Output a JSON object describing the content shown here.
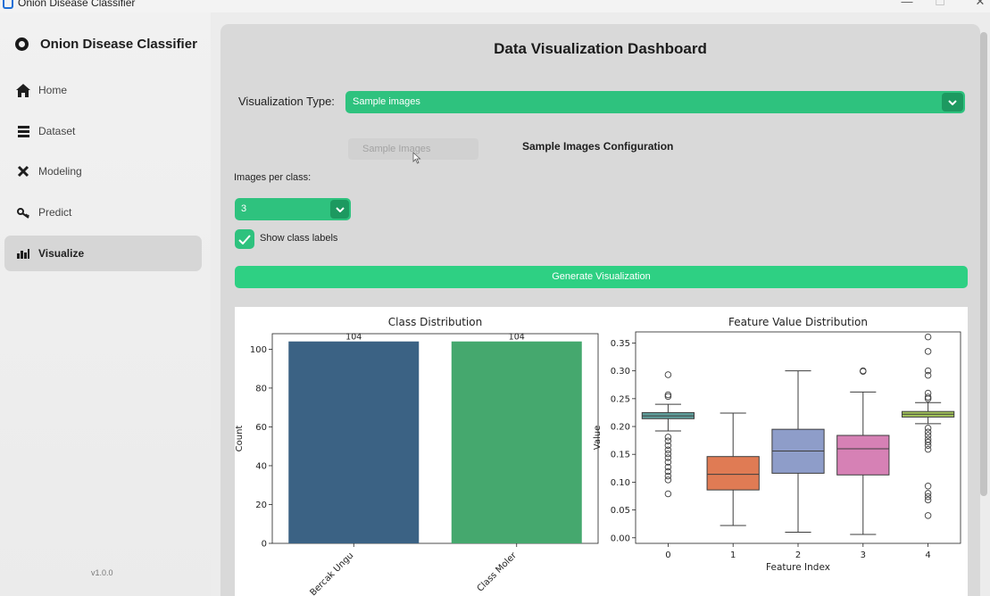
{
  "window": {
    "title": "Onion Disease Classifier",
    "controls": [
      "—",
      "☐",
      "✕"
    ]
  },
  "sidebar": {
    "brand": "Onion Disease Classifier",
    "items": [
      {
        "label": "Home",
        "icon": "home-icon"
      },
      {
        "label": "Dataset",
        "icon": "dataset-icon"
      },
      {
        "label": "Modeling",
        "icon": "modeling-icon"
      },
      {
        "label": "Predict",
        "icon": "key-icon"
      },
      {
        "label": "Visualize",
        "icon": "bar-chart-icon",
        "active": true
      }
    ],
    "version": "v1.0.0"
  },
  "main": {
    "title": "Data Visualization Dashboard",
    "viz_type_label": "Visualization Type:",
    "viz_type_value": "Sample images",
    "segment_button": "Sample Images",
    "config_title": "Sample Images Configuration",
    "images_per_class_label": "Images per class:",
    "images_per_class_value": "3",
    "show_labels_label": "Show class labels",
    "show_labels_checked": true,
    "generate_button": "Generate Visualization"
  },
  "colors": {
    "accent": "#2ec27e",
    "accent_dark": "#1d9960",
    "bar1": "#3b6284",
    "bar2": "#45a86e"
  },
  "chart_data": [
    {
      "type": "bar",
      "title": "Class Distribution",
      "xlabel": "",
      "ylabel": "Count",
      "categories": [
        "Bercak Ungu",
        "Class Moler"
      ],
      "values": [
        104,
        104
      ],
      "data_labels": [
        "104",
        "104"
      ],
      "ylim": [
        0,
        108
      ],
      "yticks": [
        0,
        20,
        40,
        60,
        80,
        100
      ],
      "colors": [
        "#3b6284",
        "#45a86e"
      ]
    },
    {
      "type": "box",
      "title": "Feature Value Distribution",
      "xlabel": "Feature Index",
      "ylabel": "Value",
      "categories": [
        "0",
        "1",
        "2",
        "3",
        "4"
      ],
      "ylim": [
        -0.01,
        0.37
      ],
      "yticks": [
        0.0,
        0.05,
        0.1,
        0.15,
        0.2,
        0.25,
        0.3,
        0.35
      ],
      "ytick_labels": [
        "0.00",
        "0.05",
        "0.10",
        "0.15",
        "0.20",
        "0.25",
        "0.30",
        "0.35"
      ],
      "boxes": [
        {
          "q1": 0.214,
          "median": 0.219,
          "q3": 0.225,
          "whislo": 0.192,
          "whishi": 0.24,
          "fliers": [
            0.293,
            0.257,
            0.254,
            0.181,
            0.174,
            0.166,
            0.158,
            0.151,
            0.144,
            0.136,
            0.127,
            0.119,
            0.111,
            0.104,
            0.079
          ],
          "color": "#5f9e9b"
        },
        {
          "q1": 0.086,
          "median": 0.114,
          "q3": 0.146,
          "whislo": 0.022,
          "whishi": 0.224,
          "fliers": [],
          "color": "#e07b54"
        },
        {
          "q1": 0.116,
          "median": 0.156,
          "q3": 0.195,
          "whislo": 0.01,
          "whishi": 0.3,
          "fliers": [],
          "color": "#8e9dc9"
        },
        {
          "q1": 0.113,
          "median": 0.16,
          "q3": 0.184,
          "whislo": 0.006,
          "whishi": 0.262,
          "fliers": [
            0.3,
            0.299
          ],
          "color": "#d681b5"
        },
        {
          "q1": 0.217,
          "median": 0.222,
          "q3": 0.227,
          "whislo": 0.205,
          "whishi": 0.243,
          "fliers": [
            0.361,
            0.335,
            0.3,
            0.292,
            0.26,
            0.253,
            0.25,
            0.197,
            0.19,
            0.184,
            0.177,
            0.172,
            0.166,
            0.159,
            0.093,
            0.08,
            0.074,
            0.068,
            0.04
          ],
          "color": "#a3c45a"
        }
      ]
    }
  ]
}
